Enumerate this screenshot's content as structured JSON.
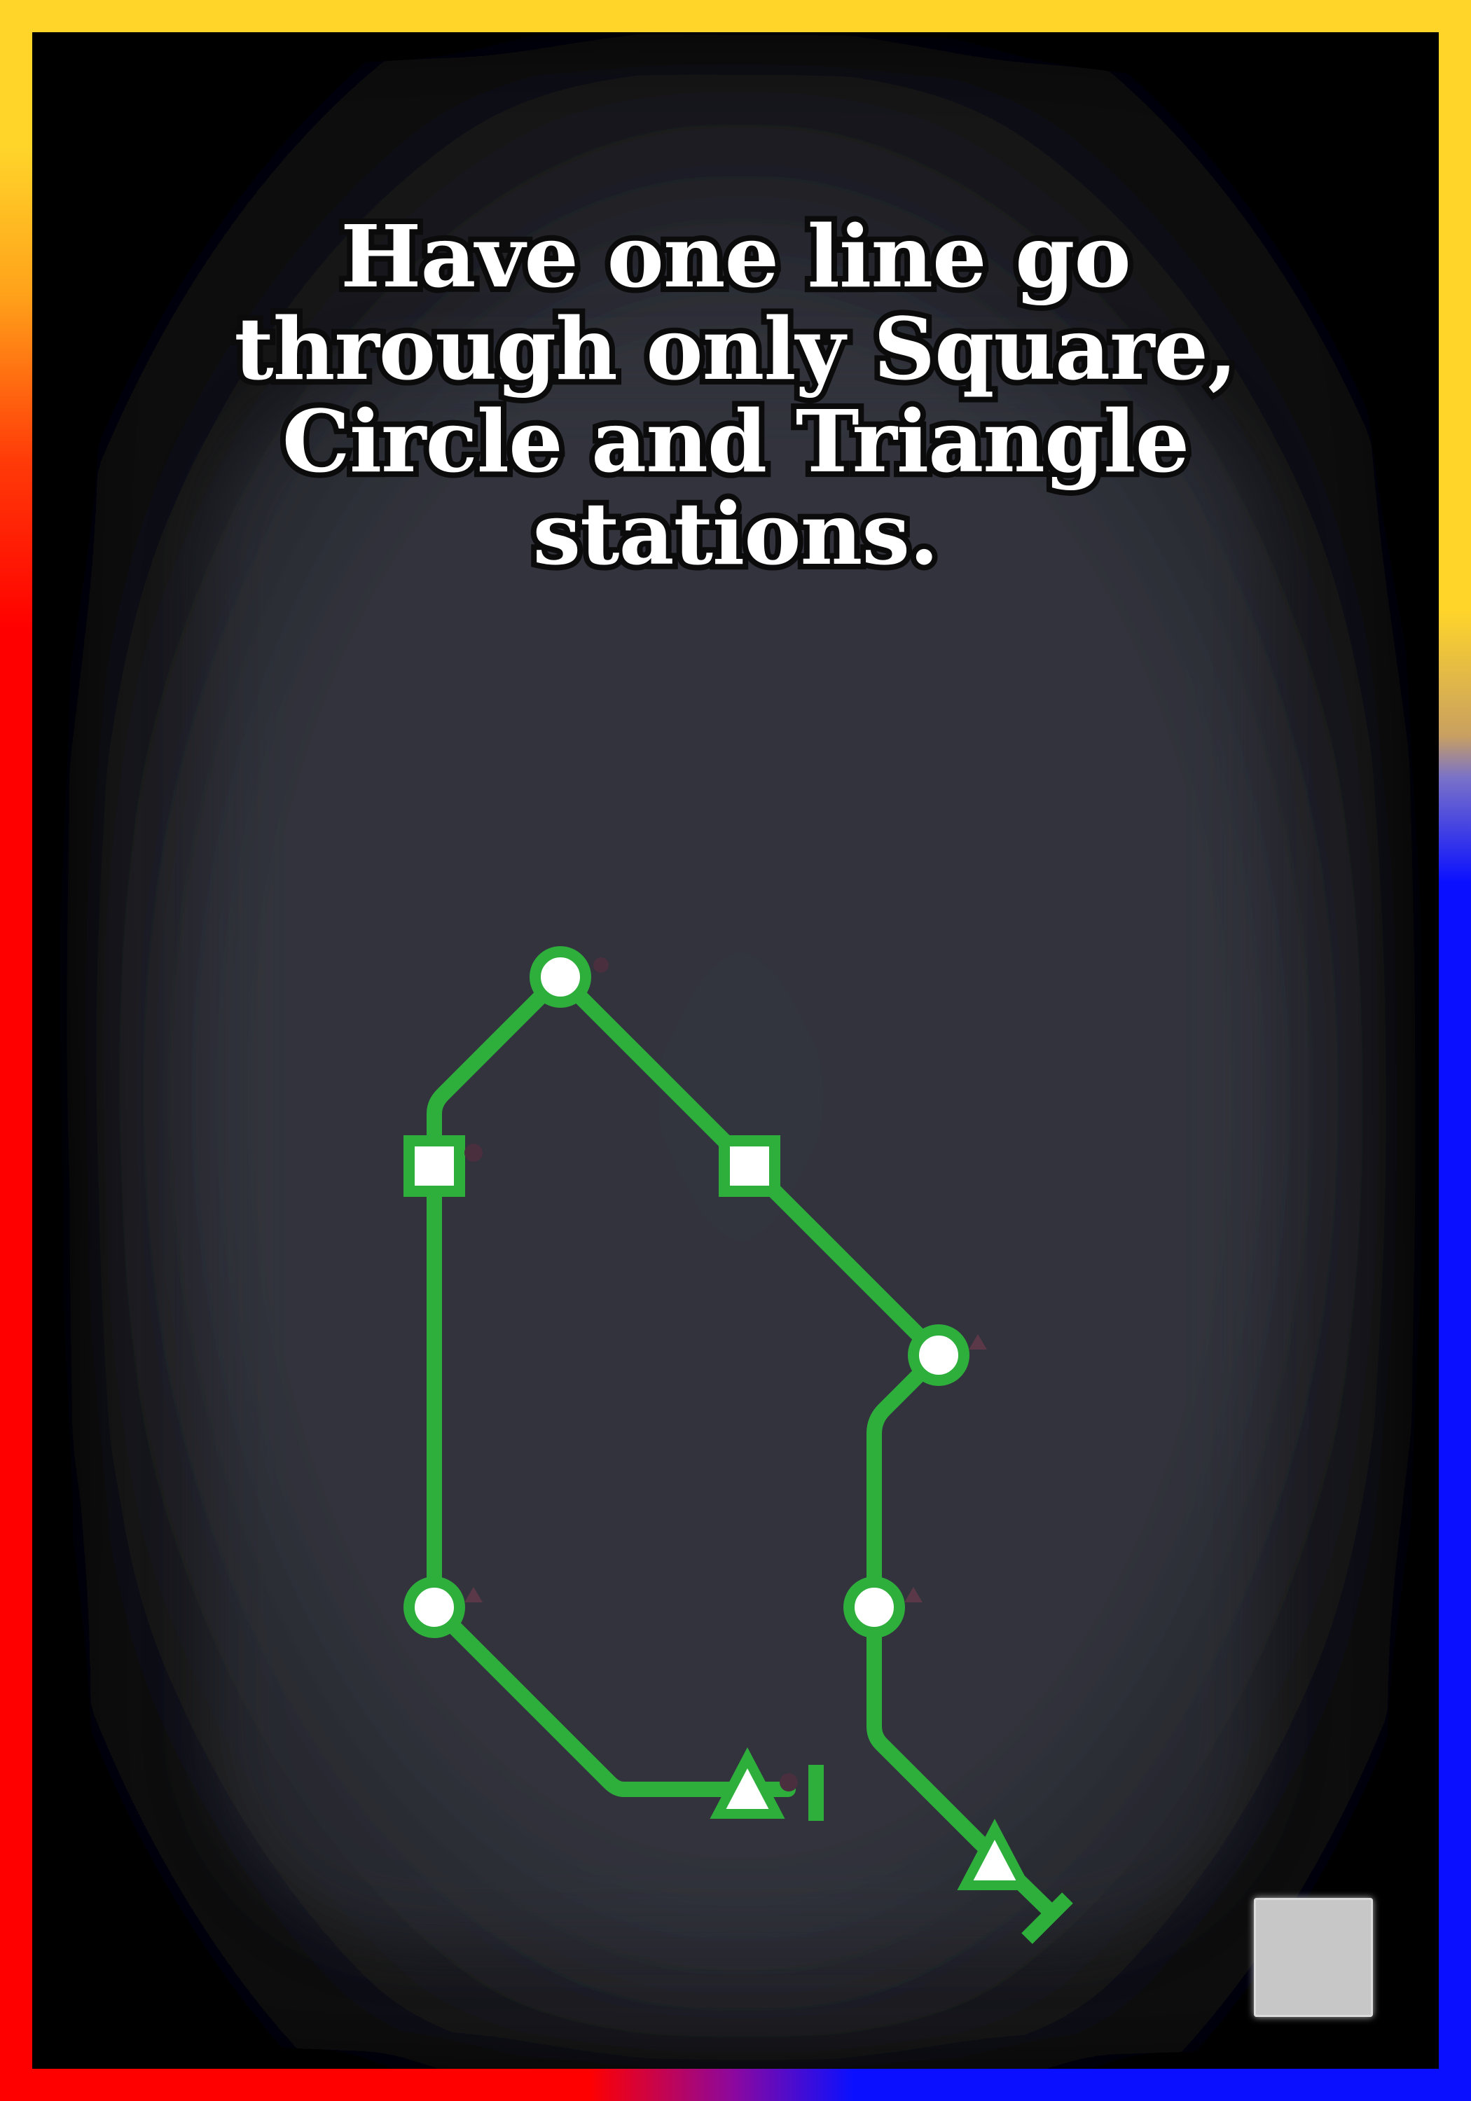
{
  "card": {
    "title_lines": [
      "Have one line go",
      "through only Square,",
      "Circle and Triangle",
      "stations."
    ]
  },
  "colors": {
    "line": "#2eaf3c",
    "background": "#33343d",
    "vignette": "#000000",
    "station_fill": "#ffffff",
    "passenger": "#4a2f3f",
    "frame_gold": "#ffd52a",
    "frame_red": "#ff0000",
    "frame_blue": "#0a10ff",
    "corner_button": "#c7c7c7"
  },
  "icons": {
    "station_circle": "circle-station-icon",
    "station_square": "square-station-icon",
    "station_triangle": "triangle-station-icon",
    "line_terminus": "line-end-icon",
    "passenger_circle": "circle-passenger-icon",
    "passenger_triangle": "triangle-passenger-icon"
  }
}
